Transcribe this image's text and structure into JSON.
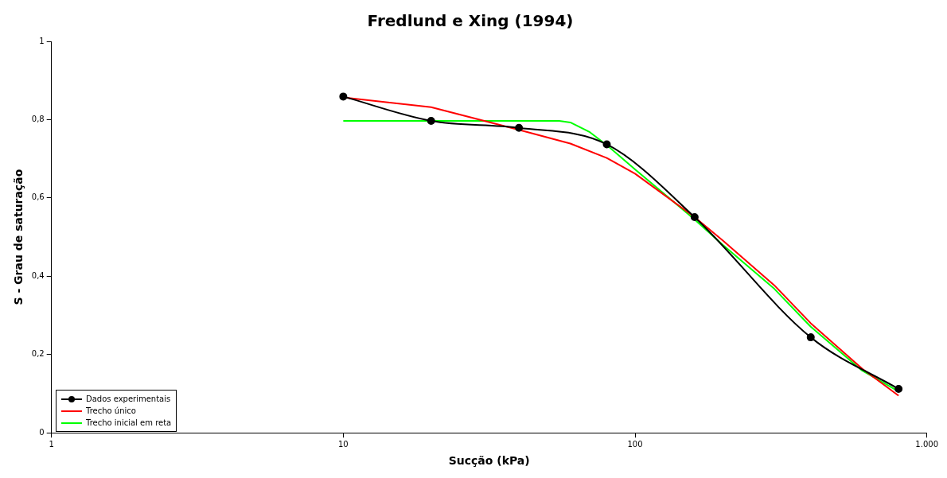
{
  "chart_data": {
    "type": "line",
    "title": "Fredlund e Xing (1994)",
    "xlabel": "Sucção (kPa)",
    "ylabel": "S - Grau de saturação",
    "log": "x",
    "xlim": [
      1,
      1000
    ],
    "xticks": [
      1,
      10,
      100,
      {
        "value": 1000,
        "label": "1.000"
      }
    ],
    "ylim": [
      0,
      1
    ],
    "yticks": [
      0,
      {
        "value": 0.2,
        "label": "0,2"
      },
      {
        "value": 0.4,
        "label": "0,4"
      },
      {
        "value": 0.6,
        "label": "0,6"
      },
      {
        "value": 0.8,
        "label": "0,8"
      },
      1
    ],
    "grid": false,
    "legend": "bottom left",
    "series": [
      {
        "name": "Dados experimentais",
        "color": "#000000",
        "marker": "circle",
        "x": [
          10,
          20,
          40,
          80,
          160,
          400,
          800
        ],
        "values": [
          0.859,
          0.797,
          0.779,
          0.737,
          0.551,
          0.244,
          0.112
        ]
      },
      {
        "name": "Trecho único",
        "color": "#ff0000",
        "marker": "none",
        "x": [
          10,
          20,
          40,
          60,
          80,
          100,
          160,
          200,
          300,
          400,
          600,
          800
        ],
        "values": [
          0.857,
          0.832,
          0.774,
          0.739,
          0.702,
          0.662,
          0.551,
          0.491,
          0.377,
          0.28,
          0.164,
          0.095
        ]
      },
      {
        "name": "Trecho inicial em reta",
        "color": "#00ff00",
        "marker": "none",
        "x": [
          10,
          55,
          60,
          70,
          80,
          100,
          160,
          200,
          300,
          400,
          600,
          800
        ],
        "values": [
          0.797,
          0.797,
          0.793,
          0.768,
          0.735,
          0.673,
          0.545,
          0.48,
          0.368,
          0.271,
          0.159,
          0.106
        ]
      }
    ]
  }
}
